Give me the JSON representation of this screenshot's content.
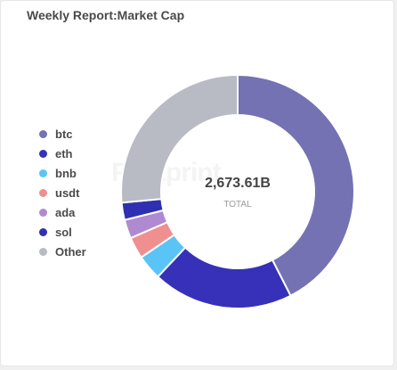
{
  "title": "Weekly Report:Market Cap",
  "watermark": "Footprint",
  "center": {
    "value": "2,673.61B",
    "label": "TOTAL"
  },
  "chart_data": {
    "type": "pie",
    "donut": true,
    "title": "Weekly Report:Market Cap",
    "legend_position": "left",
    "slices": [
      {
        "label": "btc",
        "value": 42.5,
        "color": "#7472b2"
      },
      {
        "label": "eth",
        "value": 19.5,
        "color": "#3631b8"
      },
      {
        "label": "bnb",
        "value": 3.5,
        "color": "#5bc4f7"
      },
      {
        "label": "usdt",
        "value": 3.0,
        "color": "#f08f8f"
      },
      {
        "label": "ada",
        "value": 2.6,
        "color": "#b08ad0"
      },
      {
        "label": "sol",
        "value": 2.4,
        "color": "#2f2fb2"
      },
      {
        "label": "Other",
        "value": 26.5,
        "color": "#b8bbc4"
      }
    ]
  }
}
